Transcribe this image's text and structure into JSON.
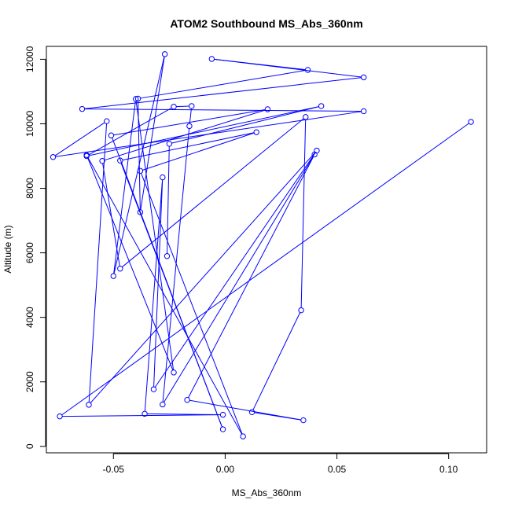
{
  "chart_data": {
    "type": "line",
    "title": "ATOM2 Southbound MS_Abs_360nm",
    "xlabel": "MS_Abs_360nm",
    "ylabel": "Altitude (m)",
    "xlim": [
      -0.08,
      0.117
    ],
    "ylim": [
      -200,
      12400
    ],
    "x_ticks": [
      -0.05,
      0.0,
      0.05,
      0.1
    ],
    "x_tick_labels": [
      "-0.05",
      "0.00",
      "0.05",
      "0.10"
    ],
    "y_ticks": [
      0,
      2000,
      4000,
      6000,
      8000,
      10000,
      12000
    ],
    "y_tick_labels": [
      "0",
      "2000",
      "4000",
      "6000",
      "8000",
      "10000",
      "12000"
    ],
    "grid": false,
    "legend": "none",
    "series_color": "#0000ff",
    "marker": "open-circle",
    "points": [
      {
        "x": 0.11,
        "y": 10060
      },
      {
        "x": -0.074,
        "y": 930
      },
      {
        "x": -0.001,
        "y": 980
      },
      {
        "x": -0.036,
        "y": 1010
      },
      {
        "x": -0.028,
        "y": 8340
      },
      {
        "x": -0.032,
        "y": 1770
      },
      {
        "x": 0.041,
        "y": 9170
      },
      {
        "x": -0.061,
        "y": 1290
      },
      {
        "x": -0.053,
        "y": 10080
      },
      {
        "x": -0.077,
        "y": 8970
      },
      {
        "x": 0.062,
        "y": 10390
      },
      {
        "x": -0.064,
        "y": 10460
      },
      {
        "x": 0.062,
        "y": 11440
      },
      {
        "x": -0.006,
        "y": 12010
      },
      {
        "x": 0.037,
        "y": 11670
      },
      {
        "x": -0.039,
        "y": 10780
      },
      {
        "x": -0.038,
        "y": 7260
      },
      {
        "x": -0.027,
        "y": 12160
      },
      {
        "x": -0.05,
        "y": 5280
      },
      {
        "x": -0.04,
        "y": 10770
      },
      {
        "x": -0.023,
        "y": 2290
      },
      {
        "x": -0.062,
        "y": 9030
      },
      {
        "x": 0.008,
        "y": 310
      },
      {
        "x": -0.038,
        "y": 8540
      },
      {
        "x": 0.014,
        "y": 9740
      },
      {
        "x": -0.047,
        "y": 8860
      },
      {
        "x": -0.001,
        "y": 530
      },
      {
        "x": -0.051,
        "y": 9640
      },
      {
        "x": 0.019,
        "y": 10450
      },
      {
        "x": -0.055,
        "y": 8850
      },
      {
        "x": -0.047,
        "y": 5510
      },
      {
        "x": 0.036,
        "y": 10210
      },
      {
        "x": 0.034,
        "y": 4220
      },
      {
        "x": 0.012,
        "y": 1060
      },
      {
        "x": 0.035,
        "y": 810
      },
      {
        "x": -0.017,
        "y": 1440
      },
      {
        "x": 0.04,
        "y": 9050
      },
      {
        "x": -0.028,
        "y": 1300
      },
      {
        "x": -0.016,
        "y": 9930
      },
      {
        "x": -0.015,
        "y": 10550
      },
      {
        "x": -0.023,
        "y": 10530
      },
      {
        "x": -0.062,
        "y": 9000
      },
      {
        "x": 0.043,
        "y": 10550
      },
      {
        "x": -0.025,
        "y": 9380
      },
      {
        "x": -0.026,
        "y": 5900
      }
    ]
  }
}
